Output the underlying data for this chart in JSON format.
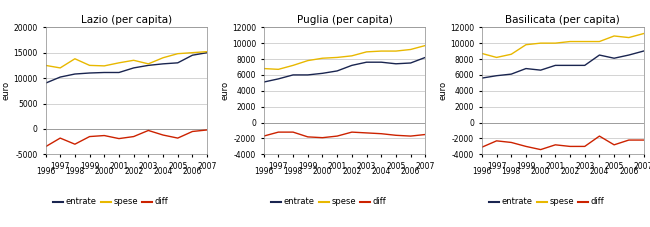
{
  "years": [
    1996,
    1997,
    1998,
    1999,
    2000,
    2001,
    2002,
    2003,
    2004,
    2005,
    2006,
    2007
  ],
  "lazio": {
    "title": "Lazio (per capita)",
    "entrate": [
      9000,
      10200,
      10800,
      11000,
      11100,
      11100,
      12000,
      12500,
      12800,
      13000,
      14500,
      15000
    ],
    "spese": [
      12500,
      12000,
      13800,
      12500,
      12400,
      13000,
      13500,
      12800,
      14000,
      14800,
      15000,
      15200
    ],
    "diff": [
      -3500,
      -1800,
      -3000,
      -1500,
      -1300,
      -1900,
      -1500,
      -300,
      -1200,
      -1800,
      -500,
      -200
    ],
    "ylim": [
      -5000,
      20000
    ],
    "yticks": [
      -5000,
      0,
      5000,
      10000,
      15000,
      20000
    ],
    "xticks": [
      1996,
      1997,
      1998,
      1999,
      2000,
      2001,
      2002,
      2003,
      2004,
      2005,
      2006,
      2007
    ],
    "xtick_labels_odd": [
      "",
      "1997",
      "",
      "1999",
      "",
      "2001",
      "",
      "2003",
      "",
      "2005",
      "",
      "2007"
    ],
    "xtick_labels_even": [
      "1996",
      "",
      "1998",
      "",
      "2000",
      "",
      "2002",
      "",
      "2004",
      "",
      "2006",
      ""
    ]
  },
  "puglia": {
    "title": "Puglia (per capita)",
    "entrate": [
      5100,
      5500,
      6000,
      6000,
      6200,
      6500,
      7200,
      7600,
      7600,
      7400,
      7500,
      8200
    ],
    "spese": [
      6800,
      6700,
      7200,
      7800,
      8100,
      8200,
      8400,
      8900,
      9000,
      9000,
      9200,
      9700
    ],
    "diff": [
      -1700,
      -1200,
      -1200,
      -1800,
      -1900,
      -1700,
      -1200,
      -1300,
      -1400,
      -1600,
      -1700,
      -1500
    ],
    "ylim": [
      -4000,
      12000
    ],
    "yticks": [
      -4000,
      -2000,
      0,
      2000,
      4000,
      6000,
      8000,
      10000,
      12000
    ],
    "xticks": [
      1996,
      1997,
      1998,
      1999,
      2000,
      2001,
      2002,
      2003,
      2004,
      2005,
      2006,
      2007
    ],
    "xtick_labels_odd": [
      "",
      "1997",
      "",
      "1999",
      "",
      "2001",
      "",
      "2003",
      "",
      "2005",
      "",
      "2007"
    ],
    "xtick_labels_even": [
      "1996",
      "",
      "1998",
      "",
      "2000",
      "",
      "2002",
      "",
      "2004",
      "",
      "2006",
      ""
    ]
  },
  "basilicata": {
    "title": "Basilicata (per capita)",
    "entrate": [
      5600,
      5900,
      6100,
      6800,
      6600,
      7200,
      7200,
      7200,
      8500,
      8100,
      8500,
      9000
    ],
    "spese": [
      8700,
      8200,
      8600,
      9800,
      10000,
      10000,
      10200,
      10200,
      10200,
      10900,
      10700,
      11200
    ],
    "diff": [
      -3100,
      -2300,
      -2500,
      -3000,
      -3400,
      -2800,
      -3000,
      -3000,
      -1700,
      -2800,
      -2200,
      -2200
    ],
    "ylim": [
      -4000,
      12000
    ],
    "yticks": [
      -4000,
      -2000,
      0,
      2000,
      4000,
      6000,
      8000,
      10000,
      12000
    ],
    "xticks": [
      1996,
      1997,
      1998,
      1999,
      2000,
      2001,
      2002,
      2003,
      2004,
      2005,
      2006,
      2007
    ],
    "xtick_labels_odd": [
      "",
      "1997",
      "",
      "1999",
      "",
      "2001",
      "",
      "2003",
      "",
      "2005",
      "",
      "2007"
    ],
    "xtick_labels_even": [
      "1996",
      "",
      "1998",
      "",
      "2000",
      "",
      "2002",
      "",
      "2004",
      "",
      "2006",
      ""
    ]
  },
  "colors": {
    "entrate": "#1a2550",
    "spese": "#e8b800",
    "diff": "#cc2200"
  },
  "legend_labels": [
    "entrate",
    "spese",
    "diff"
  ],
  "ylabel": "euro",
  "bg_color": "#ffffff",
  "grid_color": "#cccccc"
}
